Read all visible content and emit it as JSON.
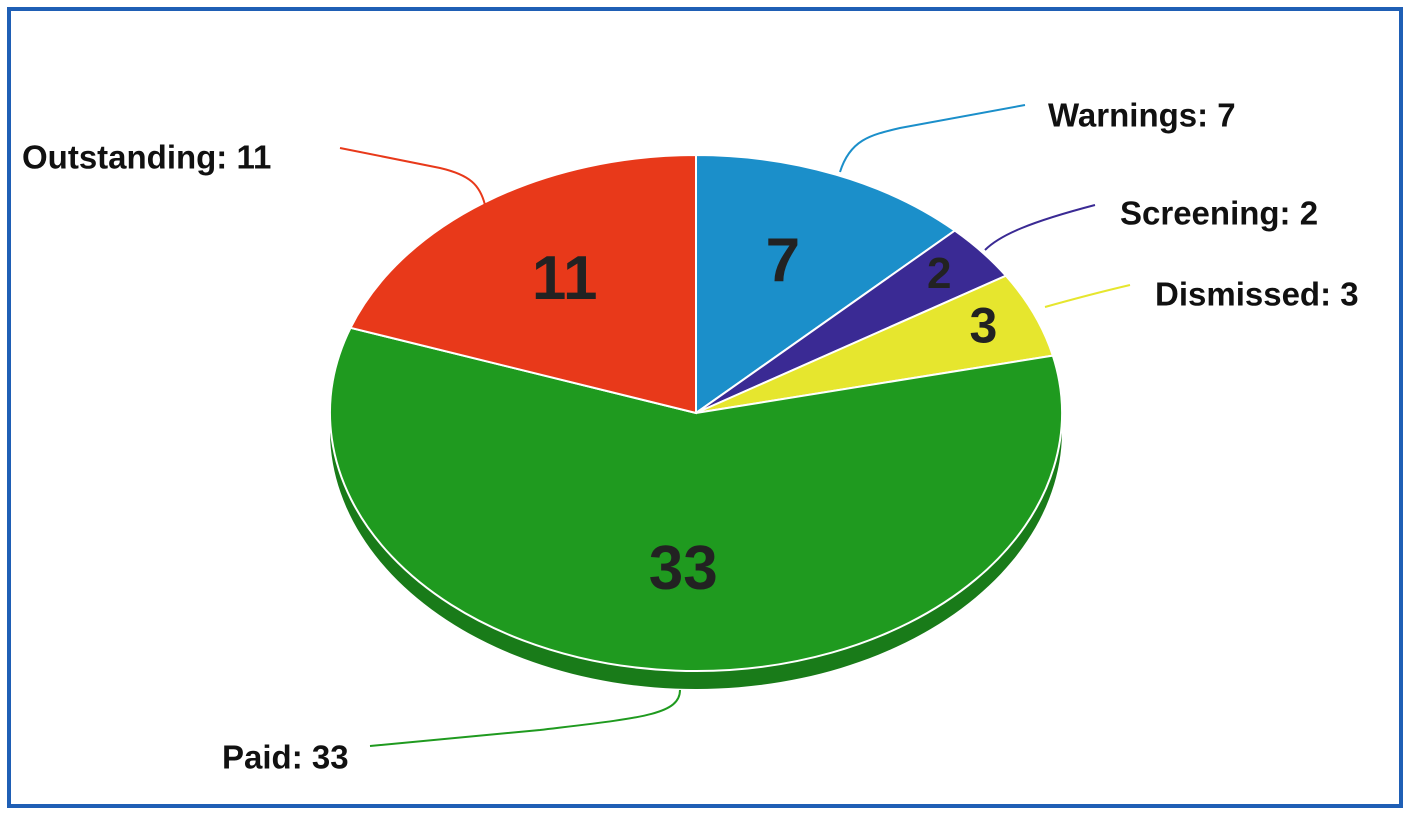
{
  "chart_data": {
    "type": "pie",
    "labels": [
      "Warnings: 7",
      "Screening: 2",
      "Dismissed: 3",
      "Paid: 33",
      "Outstanding: 11"
    ],
    "values": [
      7,
      2,
      3,
      33,
      11
    ],
    "colors": [
      "#1b8fca",
      "#3a2a94",
      "#e6e62e",
      "#1f9a1f",
      "#e8391a"
    ]
  }
}
